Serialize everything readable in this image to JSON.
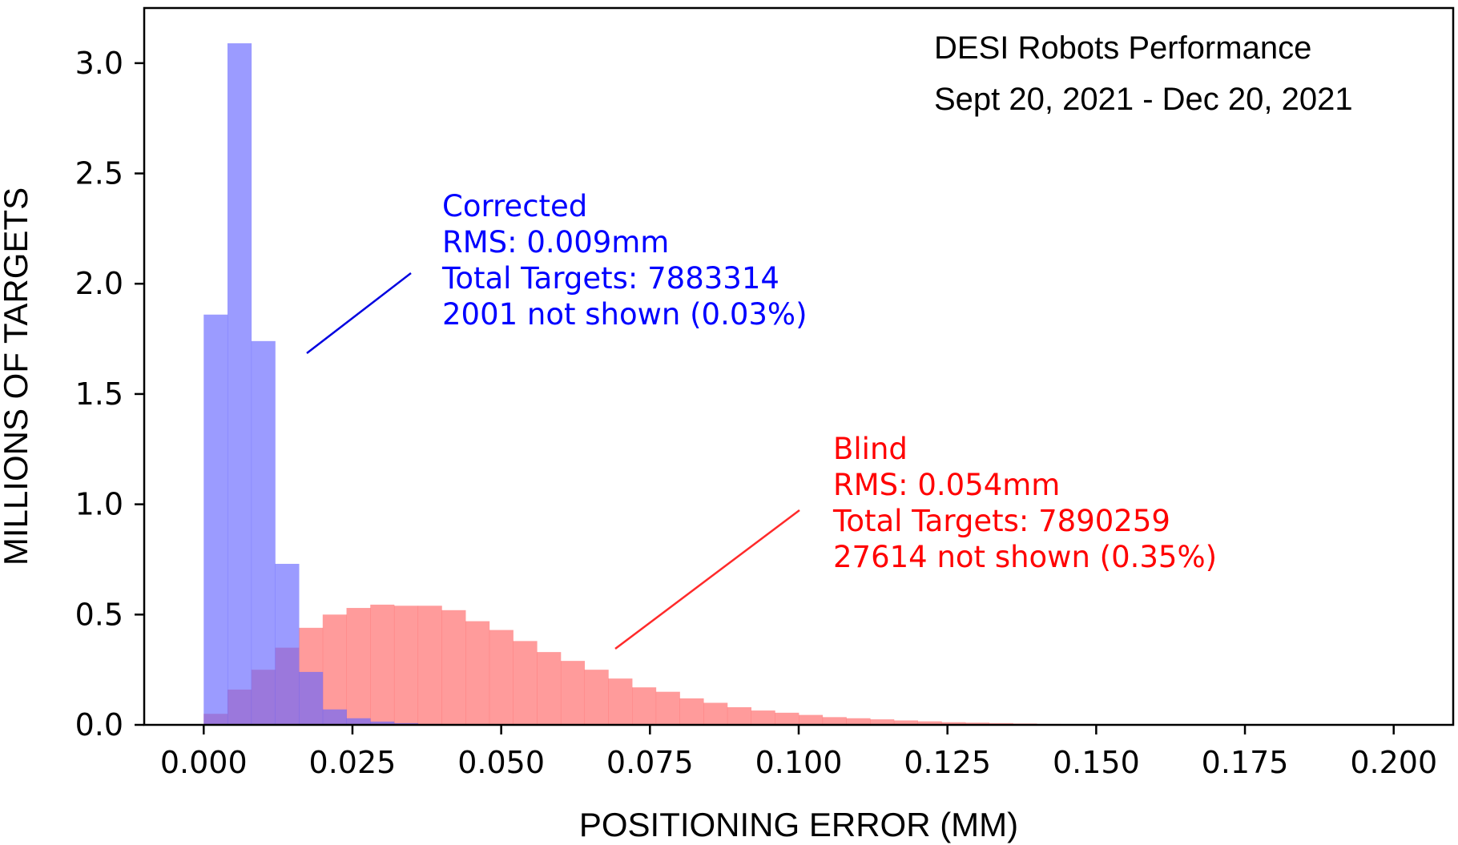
{
  "chart_data": {
    "type": "bar",
    "title": "DESI Robots Performance",
    "subtitle": "Sept 20, 2021 - Dec 20, 2021",
    "xlabel": "POSITIONING ERROR (MM)",
    "ylabel": "MILLIONS OF TARGETS",
    "xlim": [
      -0.01,
      0.21
    ],
    "ylim": [
      0,
      3.25
    ],
    "xticks": [
      "0.000",
      "0.025",
      "0.050",
      "0.075",
      "0.100",
      "0.125",
      "0.150",
      "0.175",
      "0.200"
    ],
    "yticks": [
      "0.0",
      "0.5",
      "1.0",
      "1.5",
      "2.0",
      "2.5",
      "3.0"
    ],
    "grid": false,
    "series": [
      {
        "name": "Blind",
        "color": "#ff6666",
        "annotation": [
          "Blind",
          "RMS: 0.054mm",
          "Total Targets: 7890259",
          "27614 not shown (0.35%)"
        ],
        "bins": [
          [
            0.0,
            0.004,
            0.05
          ],
          [
            0.004,
            0.008,
            0.16
          ],
          [
            0.008,
            0.012,
            0.25
          ],
          [
            0.012,
            0.016,
            0.35
          ],
          [
            0.016,
            0.02,
            0.44
          ],
          [
            0.02,
            0.024,
            0.5
          ],
          [
            0.024,
            0.028,
            0.53
          ],
          [
            0.028,
            0.032,
            0.545
          ],
          [
            0.032,
            0.036,
            0.54
          ],
          [
            0.036,
            0.04,
            0.54
          ],
          [
            0.04,
            0.044,
            0.52
          ],
          [
            0.044,
            0.048,
            0.47
          ],
          [
            0.048,
            0.052,
            0.43
          ],
          [
            0.052,
            0.056,
            0.38
          ],
          [
            0.056,
            0.06,
            0.33
          ],
          [
            0.06,
            0.064,
            0.29
          ],
          [
            0.064,
            0.068,
            0.25
          ],
          [
            0.068,
            0.072,
            0.21
          ],
          [
            0.072,
            0.076,
            0.17
          ],
          [
            0.076,
            0.08,
            0.15
          ],
          [
            0.08,
            0.084,
            0.12
          ],
          [
            0.084,
            0.088,
            0.1
          ],
          [
            0.088,
            0.092,
            0.08
          ],
          [
            0.092,
            0.096,
            0.065
          ],
          [
            0.096,
            0.1,
            0.055
          ],
          [
            0.1,
            0.104,
            0.045
          ],
          [
            0.104,
            0.108,
            0.035
          ],
          [
            0.108,
            0.112,
            0.03
          ],
          [
            0.112,
            0.116,
            0.025
          ],
          [
            0.116,
            0.12,
            0.02
          ],
          [
            0.12,
            0.124,
            0.016
          ],
          [
            0.124,
            0.128,
            0.012
          ],
          [
            0.128,
            0.132,
            0.01
          ],
          [
            0.132,
            0.136,
            0.008
          ],
          [
            0.136,
            0.14,
            0.006
          ],
          [
            0.14,
            0.144,
            0.004
          ],
          [
            0.144,
            0.148,
            0.003
          ],
          [
            0.148,
            0.152,
            0.002
          ],
          [
            0.152,
            0.156,
            0.0015
          ]
        ]
      },
      {
        "name": "Corrected",
        "color": "#6666ff",
        "annotation": [
          "Corrected",
          "RMS: 0.009mm",
          "Total Targets: 7883314",
          "2001 not shown (0.03%)"
        ],
        "bins": [
          [
            0.0,
            0.004,
            1.86
          ],
          [
            0.004,
            0.008,
            3.09
          ],
          [
            0.008,
            0.012,
            1.74
          ],
          [
            0.012,
            0.016,
            0.73
          ],
          [
            0.016,
            0.02,
            0.24
          ],
          [
            0.02,
            0.024,
            0.07
          ],
          [
            0.024,
            0.028,
            0.03
          ],
          [
            0.028,
            0.032,
            0.015
          ],
          [
            0.032,
            0.036,
            0.008
          ],
          [
            0.036,
            0.04,
            0.004
          ]
        ]
      }
    ]
  },
  "colors": {
    "blind_text": "#ff0000",
    "corrected_text": "#0000ff",
    "blind_line": "#ff2a2a",
    "corrected_line": "#0000e0"
  }
}
